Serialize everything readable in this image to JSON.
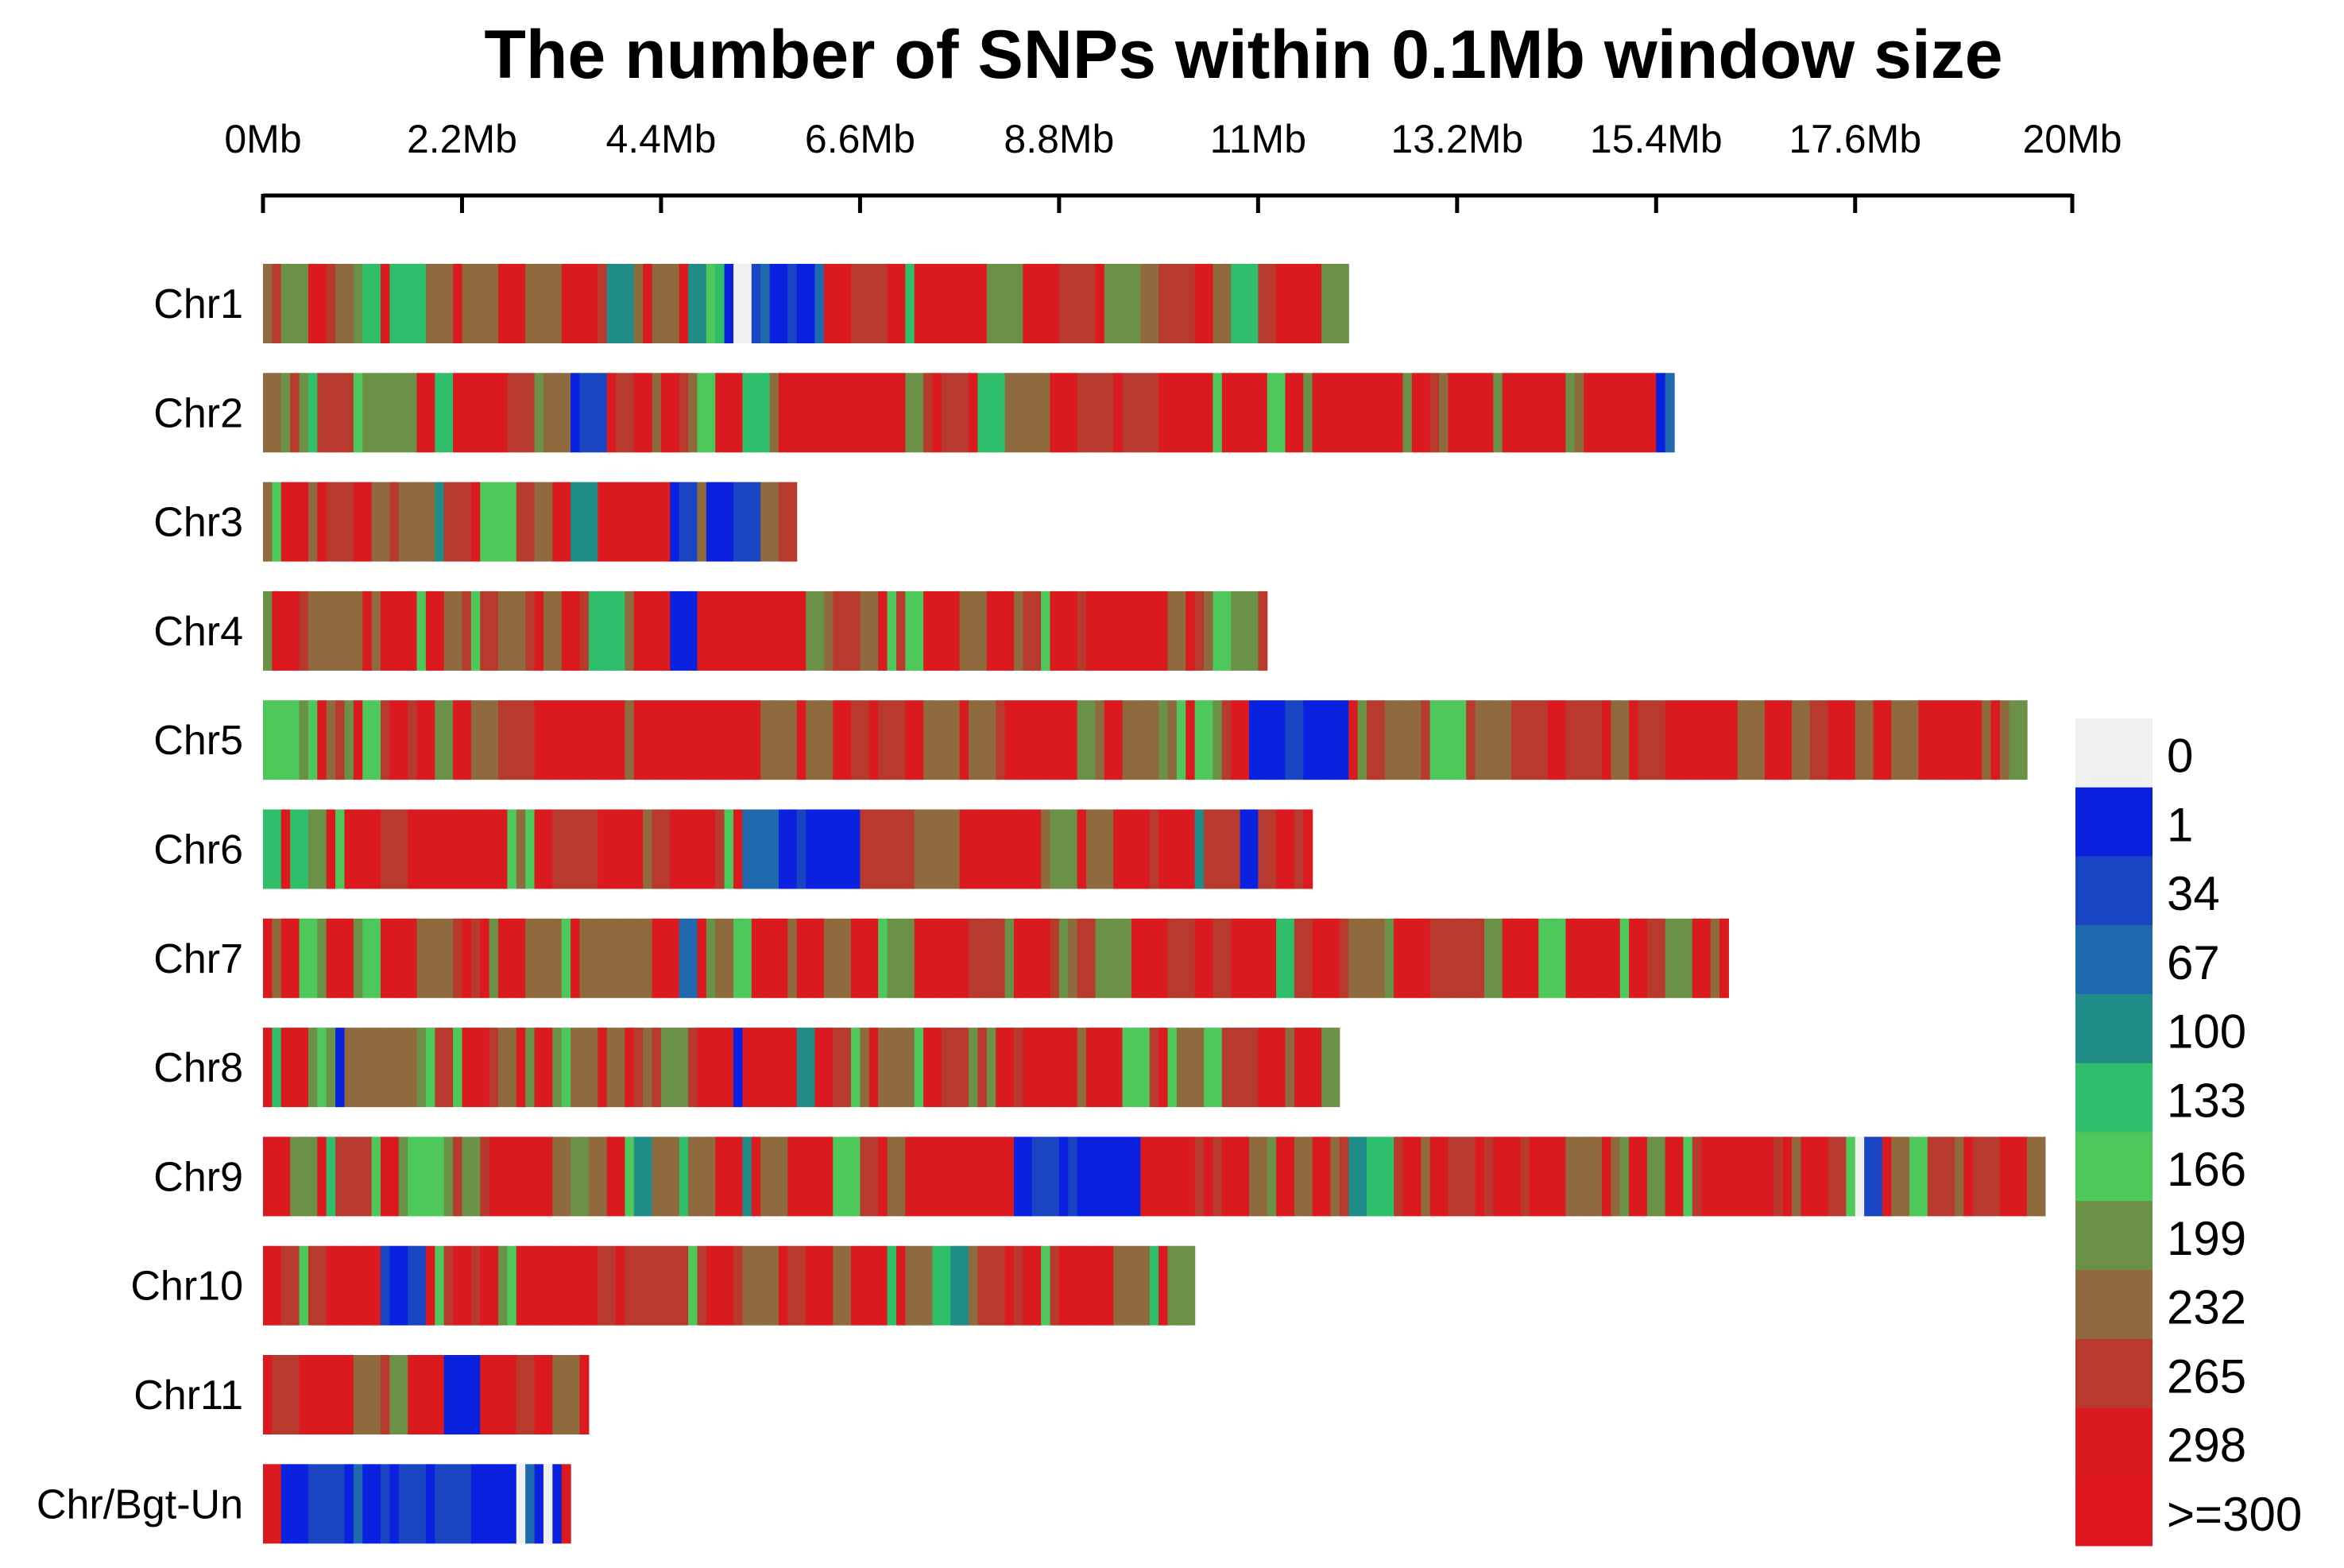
{
  "chart_data": {
    "type": "heatmap",
    "title": "The number of SNPs within 0.1Mb window size",
    "x_axis": {
      "position": "top",
      "ticks": [
        {
          "value": 0,
          "label": "0Mb"
        },
        {
          "value": 2.2,
          "label": "2.2Mb"
        },
        {
          "value": 4.4,
          "label": "4.4Mb"
        },
        {
          "value": 6.6,
          "label": "6.6Mb"
        },
        {
          "value": 8.8,
          "label": "8.8Mb"
        },
        {
          "value": 11,
          "label": "11Mb"
        },
        {
          "value": 13.2,
          "label": "13.2Mb"
        },
        {
          "value": 15.4,
          "label": "15.4Mb"
        },
        {
          "value": 17.6,
          "label": "17.6Mb"
        },
        {
          "value": 20,
          "label": "20Mb"
        }
      ],
      "range": [
        0,
        20
      ]
    },
    "window_size_mb": 0.1,
    "chromosomes": [
      {
        "name": "Chr1",
        "length_mb": 12.0,
        "low_regions": [
          [
            5.1,
            6.2
          ]
        ]
      },
      {
        "name": "Chr2",
        "length_mb": 15.6,
        "low_regions": [
          [
            3.4,
            3.8
          ],
          [
            15.4,
            15.6
          ]
        ]
      },
      {
        "name": "Chr3",
        "length_mb": 5.9,
        "low_regions": [
          [
            4.5,
            4.8
          ],
          [
            4.9,
            5.5
          ]
        ]
      },
      {
        "name": "Chr4",
        "length_mb": 11.1,
        "low_regions": [
          [
            4.4,
            4.7
          ]
        ]
      },
      {
        "name": "Chr5",
        "length_mb": 19.5,
        "low_regions": [
          [
            10.9,
            11.8
          ]
        ]
      },
      {
        "name": "Chr6",
        "length_mb": 11.6,
        "low_regions": [
          [
            5.3,
            6.3
          ],
          [
            10.8,
            10.9
          ]
        ]
      },
      {
        "name": "Chr7",
        "length_mb": 16.2,
        "low_regions": [
          [
            4.6,
            4.8
          ]
        ]
      },
      {
        "name": "Chr8",
        "length_mb": 11.9,
        "low_regions": [
          [
            0.8,
            0.9
          ],
          [
            5.2,
            5.3
          ]
        ]
      },
      {
        "name": "Chr9",
        "length_mb": 19.7,
        "low_regions": [
          [
            8.1,
            9.6
          ],
          [
            17.6,
            17.9
          ]
        ]
      },
      {
        "name": "Chr10",
        "length_mb": 10.3,
        "low_regions": [
          [
            1.1,
            1.7
          ],
          [
            7.3,
            7.4
          ]
        ]
      },
      {
        "name": "Chr11",
        "length_mb": 3.6,
        "low_regions": [
          [
            1.8,
            2.1
          ]
        ]
      },
      {
        "name": "Chr/Bgt-Un",
        "length_mb": 3.4,
        "low_regions": [
          [
            0.1,
            3.3
          ]
        ]
      }
    ],
    "legend": {
      "position": "right",
      "entries": [
        {
          "label": "0",
          "color": "#f0f0f0"
        },
        {
          "label": "1",
          "color": "#0a22e0"
        },
        {
          "label": "34",
          "color": "#1a45c2"
        },
        {
          "label": "67",
          "color": "#1f6aae"
        },
        {
          "label": "100",
          "color": "#1f8c87"
        },
        {
          "label": "133",
          "color": "#2fbf6a"
        },
        {
          "label": "166",
          "color": "#4ec85a"
        },
        {
          "label": "199",
          "color": "#6a9145"
        },
        {
          "label": "232",
          "color": "#8f6a3e"
        },
        {
          "label": "265",
          "color": "#b83a2e"
        },
        {
          "label": "298",
          "color": "#db1a1f"
        },
        {
          "label": ">=300",
          "color": "#de161c"
        }
      ]
    }
  }
}
